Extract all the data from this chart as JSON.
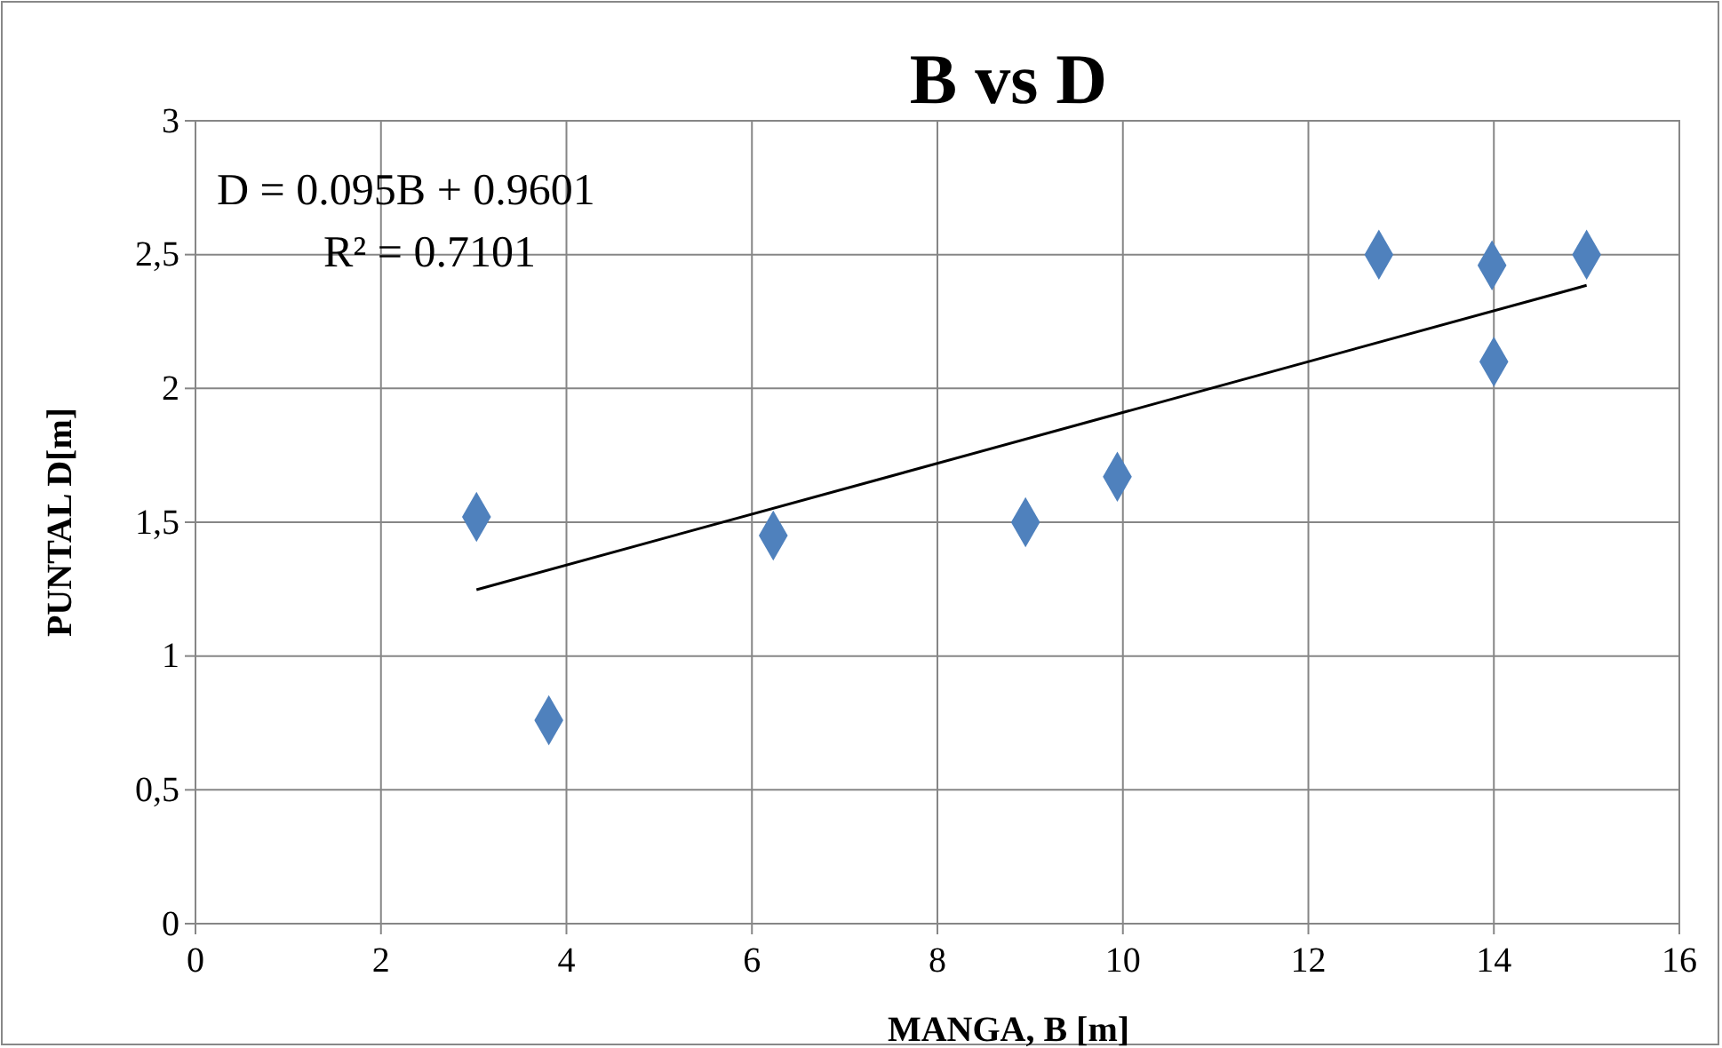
{
  "chart_data": {
    "type": "scatter",
    "title": "B vs D",
    "xlabel": "MANGA, B [m]",
    "ylabel": "PUNTAL D[m]",
    "annotations": [
      "D = 0.095B + 0.9601",
      "R² = 0.7101"
    ],
    "series": [
      {
        "color": "#4f81bd",
        "x": [
          3.03,
          3.81,
          6.23,
          8.95,
          9.94,
          12.76,
          13.98,
          14,
          15
        ],
        "values": [
          1.52,
          0.76,
          1.45,
          1.5,
          1.67,
          2.5,
          2.46,
          2.1,
          2.5
        ],
        "marker": "diamond"
      },
      {
        "type": "line",
        "color": "#000000",
        "x": [
          3.03,
          15
        ],
        "values": [
          1.248,
          2.385
        ],
        "marker": "none",
        "line_style": "solid"
      }
    ],
    "xlim": [
      0,
      16
    ],
    "xticks": [
      0,
      2,
      4,
      6,
      8,
      10,
      12,
      14,
      16
    ],
    "ylim": [
      0,
      3
    ],
    "yticks": [
      0,
      {
        "value": 0.5,
        "label": "0,5"
      },
      1,
      {
        "value": 1.5,
        "label": "1,5"
      },
      2,
      {
        "value": 2.5,
        "label": "2,5"
      },
      3
    ],
    "grid": true
  }
}
